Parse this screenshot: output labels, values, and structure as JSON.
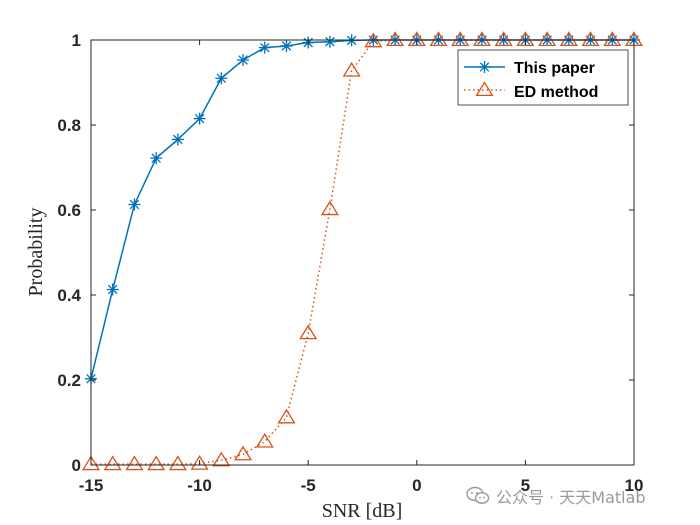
{
  "chart_data": {
    "type": "line",
    "xlabel": "SNR [dB]",
    "ylabel": "Probability",
    "xlim": [
      -15,
      10
    ],
    "ylim": [
      0,
      1
    ],
    "xticks": [
      -15,
      -10,
      -5,
      0,
      5,
      10
    ],
    "yticks": [
      0,
      0.2,
      0.4,
      0.6,
      0.8,
      1
    ],
    "grid": false,
    "legend_position": "top-right",
    "x": [
      -15,
      -14,
      -13,
      -12,
      -11,
      -10,
      -9,
      -8,
      -7,
      -6,
      -5,
      -4,
      -3,
      -2,
      -1,
      0,
      1,
      2,
      3,
      4,
      5,
      6,
      7,
      8,
      9,
      10
    ],
    "series": [
      {
        "name": "This paper",
        "color": "#0072BD",
        "marker": "asterisk",
        "line_style": "solid",
        "values": [
          0.203,
          0.413,
          0.613,
          0.722,
          0.766,
          0.815,
          0.91,
          0.953,
          0.982,
          0.986,
          0.994,
          0.996,
          0.999,
          1,
          1,
          1,
          1,
          1,
          1,
          1,
          1,
          1,
          1,
          1,
          1,
          1
        ]
      },
      {
        "name": "ED method",
        "color": "#D95319",
        "marker": "triangle",
        "line_style": "dotted",
        "values": [
          0.002,
          0.002,
          0.002,
          0.002,
          0.002,
          0.003,
          0.011,
          0.025,
          0.055,
          0.112,
          0.31,
          0.602,
          0.928,
          0.997,
          1,
          1,
          1,
          1,
          1,
          1,
          1,
          1,
          1,
          1,
          1,
          1
        ]
      }
    ]
  },
  "watermark": {
    "text": "公众号 · 天天Matlab",
    "icon": "wechat-icon"
  }
}
